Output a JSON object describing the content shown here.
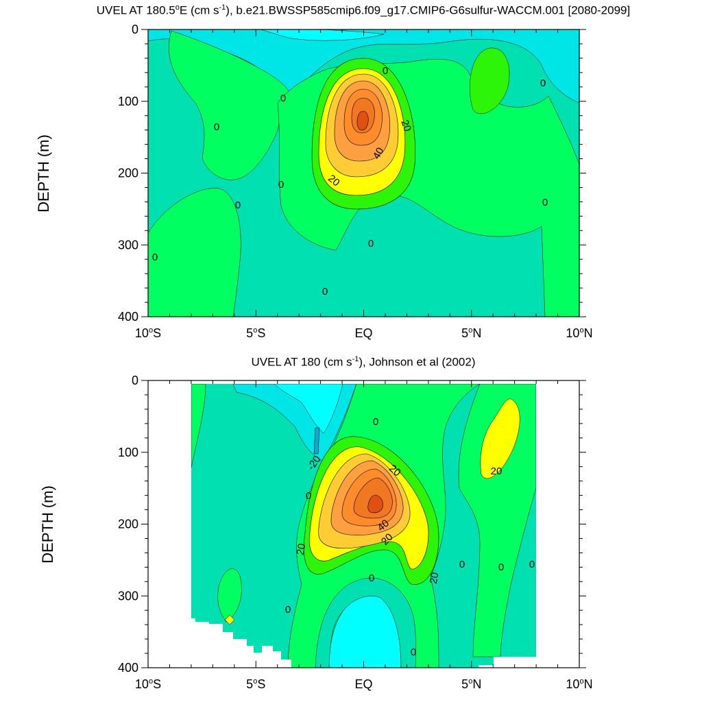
{
  "chart_data": [
    {
      "type": "heatmap",
      "title": "UVEL AT 180.5°E (cm s⁻¹), b.e21.BWSSP585cmip6.f09_g17.CMIP6-G6sulfur-WACCM.001 [2080-2099]",
      "title_parts": {
        "a": "UVEL AT 180.5",
        "deg": "o",
        "b": "E (cm s",
        "sup": "-1",
        "c": "), b.e21.BWSSP585cmip6.f09_g17.CMIP6-G6sulfur-WACCM.001 [2080-2099]"
      },
      "xlabel": "",
      "ylabel": "DEPTH (m)",
      "x_ticks": [
        "10°S",
        "5°S",
        "EQ",
        "5°N",
        "10°N"
      ],
      "x_tick_parts": [
        [
          "10",
          "o",
          "S"
        ],
        [
          "5",
          "o",
          "S"
        ],
        [
          "EQ",
          "",
          ""
        ],
        [
          "5",
          "o",
          "N"
        ],
        [
          "10",
          "o",
          "N"
        ]
      ],
      "y_ticks": [
        "0",
        "100",
        "200",
        "300",
        "400"
      ],
      "xlim": [
        -10,
        10
      ],
      "ylim": [
        0,
        400
      ],
      "contour_labels": [
        "0",
        "0",
        "0",
        "0",
        "0",
        "0",
        "0",
        "0",
        "0",
        "0",
        "20",
        "20",
        "40"
      ],
      "jet_core": {
        "lat": 0,
        "depth": 130,
        "max_speed": 65
      },
      "contour_interval": 10,
      "colors": {
        "neg_10": "#00e5e5",
        "neg_20": "#00ffff",
        "zero_to_10": "#00ff60",
        "ten_to_20": "#2df50a",
        "twenty": "#ffff00",
        "thirty": "#ffcc33",
        "forty": "#ffa040",
        "fifty": "#ff8c2a",
        "sixty": "#f07820",
        "base": "#00e0b0"
      }
    },
    {
      "type": "heatmap",
      "title": "UVEL AT 180 (cm s⁻¹), Johnson et al (2002)",
      "title_parts": {
        "a": "UVEL AT 180 (cm s",
        "sup": "-1",
        "c": "), Johnson et al (2002)"
      },
      "xlabel": "",
      "ylabel": "DEPTH (m)",
      "x_ticks": [
        "10°S",
        "5°S",
        "EQ",
        "5°N",
        "10°N"
      ],
      "x_tick_parts": [
        [
          "10",
          "o",
          "S"
        ],
        [
          "5",
          "o",
          "S"
        ],
        [
          "EQ",
          "",
          ""
        ],
        [
          "5",
          "o",
          "N"
        ],
        [
          "10",
          "o",
          "N"
        ]
      ],
      "y_ticks": [
        "0",
        "100",
        "200",
        "300",
        "400"
      ],
      "xlim": [
        -10,
        10
      ],
      "ylim": [
        0,
        400
      ],
      "data_lat_range": [
        -8,
        8
      ],
      "contour_labels": [
        "0",
        "0",
        "0",
        "0",
        "0",
        "0",
        "0",
        "0",
        "-20",
        "20",
        "20",
        "20",
        "20",
        "20",
        "40"
      ],
      "jet_core": {
        "lat": 0.5,
        "depth": 170,
        "max_speed": 70
      },
      "contour_interval": 10
    }
  ]
}
